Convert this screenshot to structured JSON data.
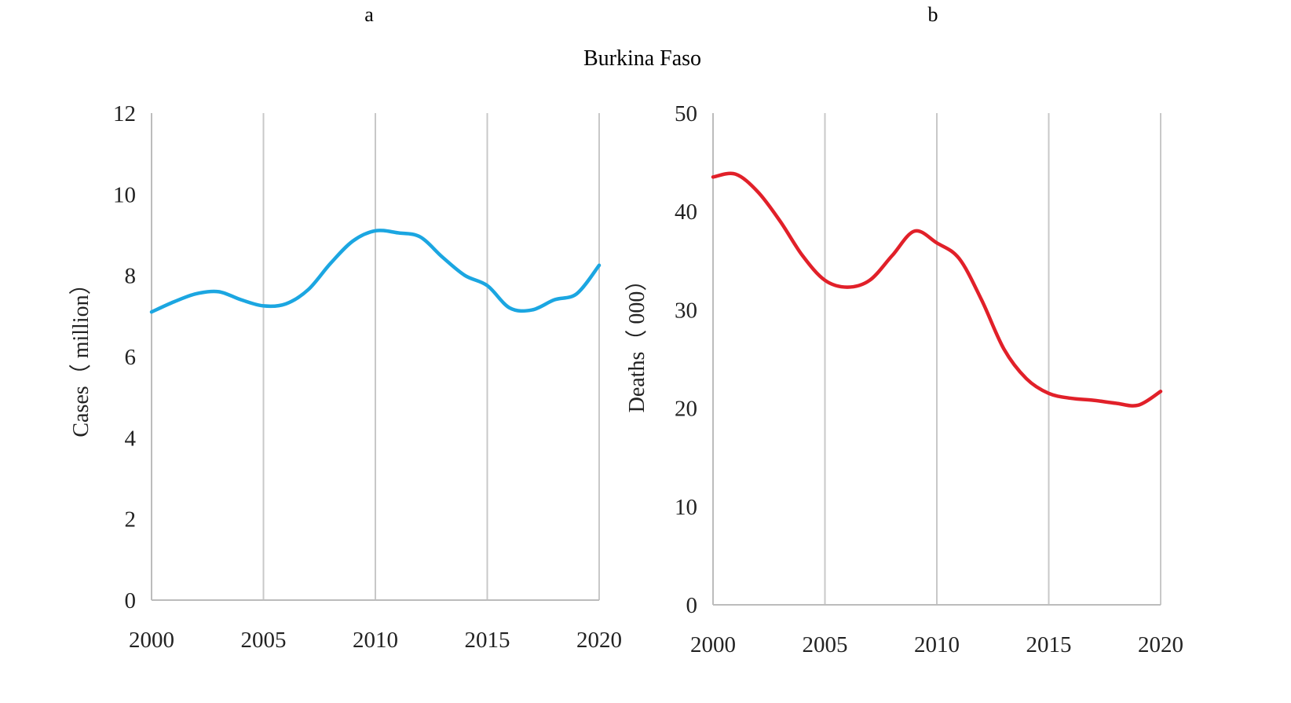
{
  "figure": {
    "title": "Burkina Faso"
  },
  "chart_data": [
    {
      "type": "line",
      "panel": "a",
      "title": "",
      "xlabel": "",
      "ylabel": "Cases（ million）",
      "xlim": [
        2000,
        2020
      ],
      "ylim": [
        0,
        12
      ],
      "xticks": [
        2000,
        2005,
        2010,
        2015,
        2020
      ],
      "yticks": [
        0,
        2,
        4,
        6,
        8,
        10,
        12
      ],
      "grid": "vertical",
      "legend": "none",
      "color": "#1ba6e1",
      "series": [
        {
          "x": [
            2000,
            2001,
            2002,
            2003,
            2004,
            2005,
            2006,
            2007,
            2008,
            2009,
            2010,
            2011,
            2012,
            2013,
            2014,
            2015,
            2016,
            2017,
            2018,
            2019,
            2020
          ],
          "values": [
            7.1,
            7.35,
            7.55,
            7.6,
            7.4,
            7.25,
            7.3,
            7.65,
            8.3,
            8.85,
            9.1,
            9.05,
            8.95,
            8.45,
            8.0,
            7.75,
            7.2,
            7.15,
            7.4,
            7.55,
            8.25
          ]
        }
      ]
    },
    {
      "type": "line",
      "panel": "b",
      "title": "",
      "xlabel": "",
      "ylabel": "Deaths（ 000）",
      "xlim": [
        2000,
        2020
      ],
      "ylim": [
        0,
        50
      ],
      "xticks": [
        2000,
        2005,
        2010,
        2015,
        2020
      ],
      "yticks": [
        0,
        10,
        20,
        30,
        40,
        50
      ],
      "grid": "vertical",
      "legend": "none",
      "color": "#e12029",
      "series": [
        {
          "x": [
            2000,
            2001,
            2002,
            2003,
            2004,
            2005,
            2006,
            2007,
            2008,
            2009,
            2010,
            2011,
            2012,
            2013,
            2014,
            2015,
            2016,
            2017,
            2018,
            2019,
            2020
          ],
          "values": [
            43.5,
            43.8,
            42.0,
            39.0,
            35.5,
            33.0,
            32.3,
            33.0,
            35.5,
            38.0,
            36.8,
            35.2,
            31.0,
            26.0,
            23.0,
            21.5,
            21.0,
            20.8,
            20.5,
            20.3,
            21.7
          ]
        }
      ]
    }
  ]
}
